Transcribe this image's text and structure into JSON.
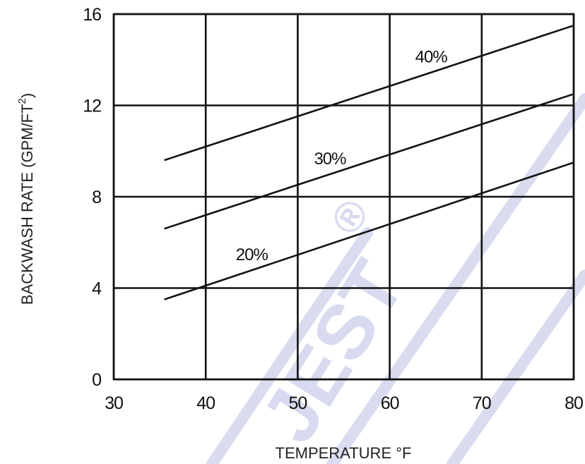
{
  "chart_data": {
    "type": "line",
    "title": "",
    "xlabel": "TEMPERATURE °F",
    "ylabel": "BACKWASH RATE (GPM/FT",
    "ylabel_superscript": "2",
    "ylabel_suffix": ")",
    "xlim": [
      30,
      80
    ],
    "ylim": [
      0,
      16
    ],
    "xticks": [
      30,
      40,
      50,
      60,
      70,
      80
    ],
    "yticks": [
      0,
      4,
      8,
      12,
      16
    ],
    "grid": true,
    "legend": "none",
    "series": [
      {
        "name": "40%",
        "x": [
          35.5,
          80
        ],
        "y": [
          9.6,
          15.5
        ]
      },
      {
        "name": "30%",
        "x": [
          35.5,
          80
        ],
        "y": [
          6.6,
          12.5
        ]
      },
      {
        "name": "20%",
        "x": [
          35.5,
          80
        ],
        "y": [
          3.5,
          9.5
        ]
      }
    ]
  },
  "watermark": {
    "text": "JEST",
    "mark": "®",
    "color": "#d4d8ee"
  }
}
